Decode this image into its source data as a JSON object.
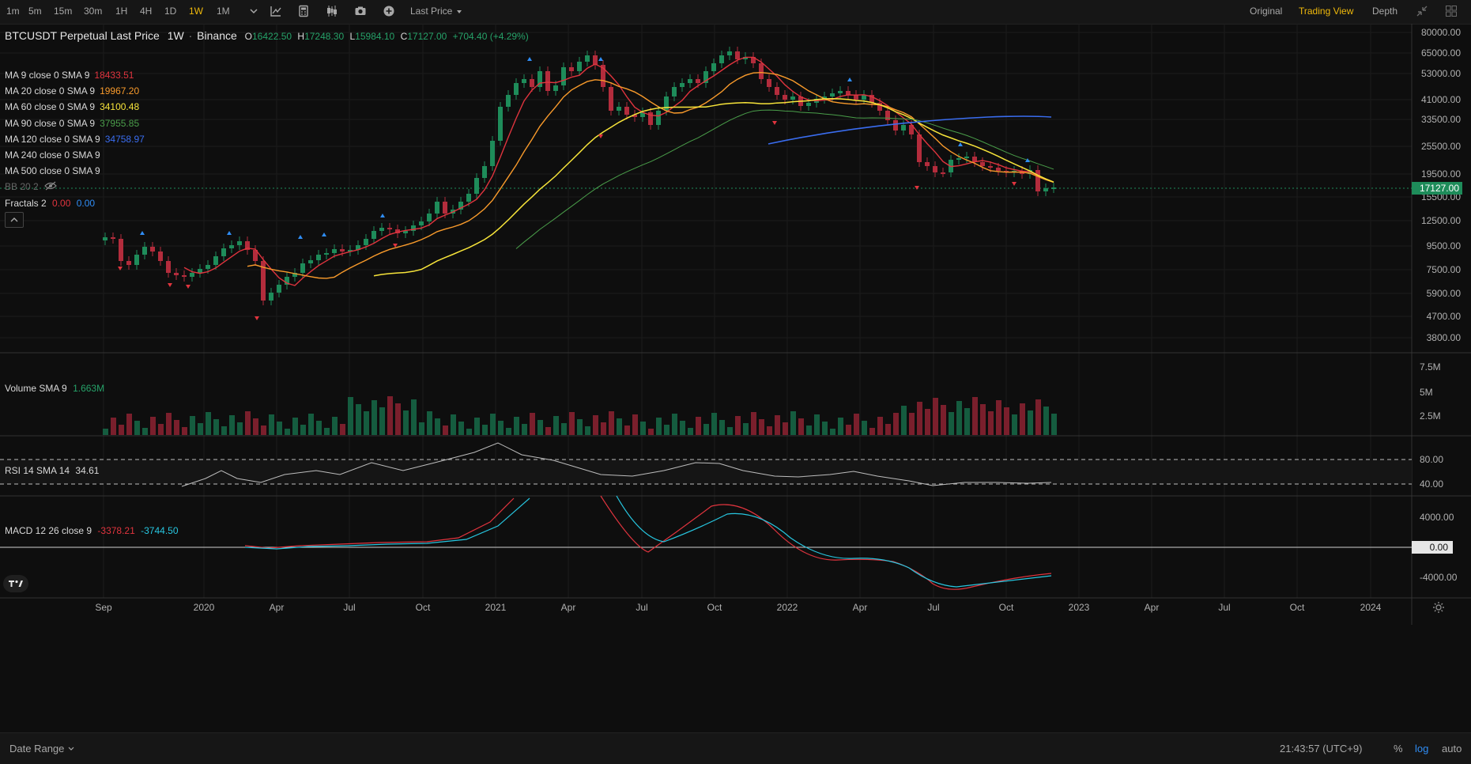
{
  "toolbar": {
    "intervals": [
      "1m",
      "5m",
      "15m",
      "30m",
      "1H",
      "4H",
      "1D",
      "1W",
      "1M"
    ],
    "active_interval": "1W",
    "price_type": "Last Price",
    "views": [
      "Original",
      "Trading View",
      "Depth"
    ],
    "active_view": "Trading View"
  },
  "header": {
    "symbol": "BTCUSDT Perpetual Last Price",
    "interval": "1W",
    "exchange": "Binance",
    "open_label": "O",
    "open": "16422.50",
    "high_label": "H",
    "high": "17248.30",
    "low_label": "L",
    "low": "15984.10",
    "close_label": "C",
    "close": "17127.00",
    "change": "+704.40 (+4.29%)"
  },
  "indicators": [
    {
      "label": "MA 9 close 0 SMA 9",
      "value": "18433.51",
      "color": "#e0343e"
    },
    {
      "label": "MA 20 close 0 SMA 9",
      "value": "19967.20",
      "color": "#f89a2b"
    },
    {
      "label": "MA 60 close 0 SMA 9",
      "value": "34100.48",
      "color": "#f7e43a"
    },
    {
      "label": "MA 90 close 0 SMA 9",
      "value": "37955.85",
      "color": "#4a9e4a"
    },
    {
      "label": "MA 120 close 0 SMA 9",
      "value": "34758.97",
      "color": "#3a6df0"
    },
    {
      "label": "MA 240 close 0 SMA 9",
      "value": "",
      "color": "#d9d9d9"
    },
    {
      "label": "MA 500 close 0 SMA 9",
      "value": "",
      "color": "#d9d9d9"
    }
  ],
  "bb": {
    "label": "BB 20 2"
  },
  "fractals": {
    "label": "Fractals 2",
    "value1": "0.00",
    "value2": "0.00"
  },
  "price_axis": {
    "labels": [
      "80000.00",
      "65000.00",
      "53000.00",
      "41000.00",
      "33500.00",
      "25500.00",
      "19500.00",
      "15500.00",
      "12500.00",
      "9500.00",
      "7500.00",
      "5900.00",
      "4700.00",
      "3800.00"
    ],
    "current_price": "17127.00"
  },
  "volume": {
    "label": "Volume SMA 9",
    "value": "1.663M",
    "axis_labels": [
      "7.5M",
      "5M",
      "2.5M"
    ]
  },
  "rsi": {
    "label": "RSI 14 SMA 14",
    "value": "34.61",
    "axis_labels": [
      "80.00",
      "40.00"
    ]
  },
  "macd": {
    "label": "MACD 12 26 close 9",
    "value1": "-3378.21",
    "value2": "-3744.50",
    "axis_labels": [
      "4000.00",
      "0.00",
      "-4000.00"
    ]
  },
  "time_axis": {
    "labels": [
      "Sep",
      "2020",
      "Apr",
      "Jul",
      "Oct",
      "2021",
      "Apr",
      "Jul",
      "Oct",
      "2022",
      "Apr",
      "Jul",
      "Oct",
      "2023",
      "Apr",
      "Jul",
      "Oct",
      "2024"
    ]
  },
  "footer": {
    "date_range": "Date Range",
    "time": "21:43:57 (UTC+9)",
    "percent": "%",
    "log": "log",
    "auto": "auto"
  },
  "colors": {
    "up": "#1e8c5a",
    "down": "#b32c3c",
    "accent": "#f0b90b",
    "fractal_up": "#2f8df5",
    "fractal_down": "#e0343e"
  }
}
